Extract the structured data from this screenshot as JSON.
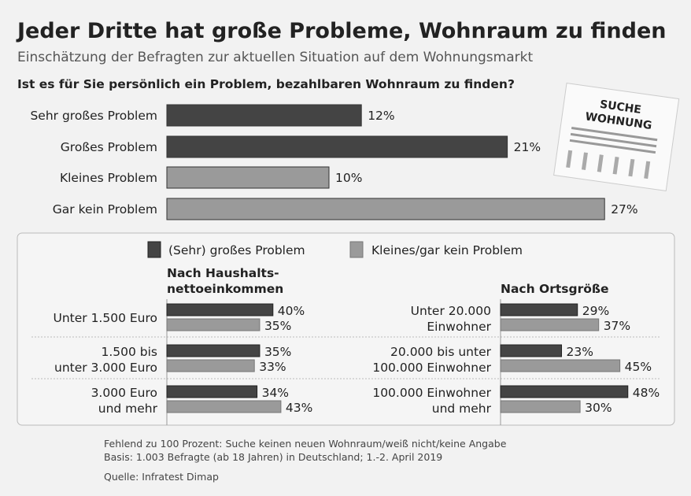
{
  "title": "Jeder Dritte hat große Probleme, Wohnraum zu finden",
  "subtitle": "Einschätzung der Befragten zur aktuellen Situation auf dem Wohnungsmarkt",
  "colors": {
    "dark": "#444444",
    "light": "#9a9a9a",
    "background": "#f2f2f2"
  },
  "illustration": {
    "icon": "wanted-apartment-flyer-icon",
    "text_line1": "SUCHE",
    "text_line2": "WOHNUNG"
  },
  "footnotes": [
    "Fehlend zu 100 Prozent: Suche keinen neuen Wohnraum/weiß nicht/keine Angabe",
    "Basis: 1.003 Befragte (ab 18 Jahren) in Deutschland; 1.-2. April 2019",
    "Quelle: Infratest Dimap"
  ],
  "chart_data": [
    {
      "type": "bar",
      "orientation": "horizontal",
      "title": "Ist es für Sie persönlich ein Problem, bezahlbaren Wohnraum zu finden?",
      "categories": [
        "Sehr großes Problem",
        "Großes Problem",
        "Kleines Problem",
        "Gar kein Problem"
      ],
      "values": [
        12,
        21,
        10,
        27
      ],
      "colors": [
        "#444444",
        "#444444",
        "#9a9a9a",
        "#9a9a9a"
      ],
      "unit": "%"
    },
    {
      "type": "bar",
      "orientation": "horizontal",
      "title": "Nach Haushalts-\nnettoeinkommen",
      "title_lines": [
        "Nach Haushalts-",
        "nettoeinkommen"
      ],
      "categories": [
        [
          "Unter 1.500 Euro"
        ],
        [
          "1.500 bis",
          "unter 3.000 Euro"
        ],
        [
          "3.000 Euro",
          "und mehr"
        ]
      ],
      "series": [
        {
          "name": "(Sehr) großes Problem",
          "values": [
            40,
            35,
            34
          ]
        },
        {
          "name": "Kleines/gar kein Problem",
          "values": [
            35,
            33,
            43
          ]
        }
      ],
      "legend": "top",
      "unit": "%"
    },
    {
      "type": "bar",
      "orientation": "horizontal",
      "title": "Nach Ortsgröße",
      "title_lines": [
        "Nach Ortsgröße"
      ],
      "categories": [
        [
          "Unter 20.000",
          "Einwohner"
        ],
        [
          "20.000 bis unter",
          "100.000 Einwohner"
        ],
        [
          "100.000 Einwohner",
          "und mehr"
        ]
      ],
      "series": [
        {
          "name": "(Sehr) großes Problem",
          "values": [
            29,
            23,
            48
          ]
        },
        {
          "name": "Kleines/gar kein Problem",
          "values": [
            37,
            45,
            30
          ]
        }
      ],
      "legend": "top",
      "unit": "%"
    }
  ]
}
